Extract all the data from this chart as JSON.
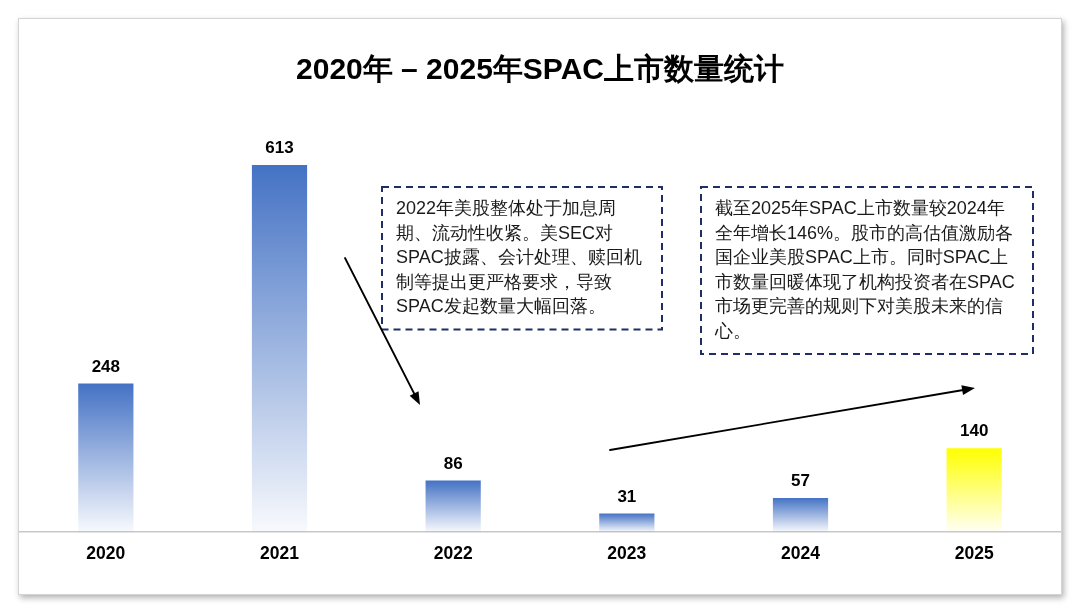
{
  "chart_data": {
    "type": "bar",
    "title": "2020年 – 2025年SPAC上市数量统计",
    "categories": [
      "2020",
      "2021",
      "2022",
      "2023",
      "2024",
      "2025"
    ],
    "values": [
      248,
      613,
      86,
      31,
      57,
      140
    ],
    "colors": [
      "#4472c4",
      "#4472c4",
      "#4472c4",
      "#4472c4",
      "#4472c4",
      "#ffff00"
    ],
    "data_labels": true,
    "grid": false,
    "legend": false,
    "annotations": [
      "2022年美股整体处于加息周期、流动性收紧。美SEC对SPAC披露、会计处理、赎回机制等提出更严格要求，导致SPAC发起数量大幅回落。",
      "截至2025年SPAC上市数量较2024年全年增长146%。股市的高估值激励各国企业美股SPAC上市。同时SPAC上市数量回暖体现了机构投资者在SPAC市场更完善的规则下对美股未来的信心。"
    ]
  }
}
